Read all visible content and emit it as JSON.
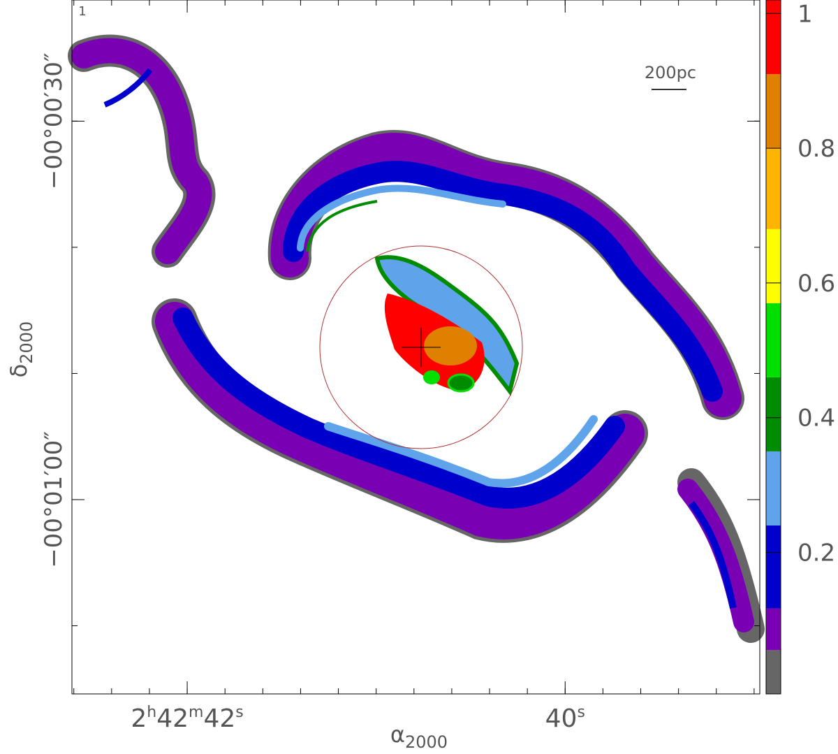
{
  "panel_label": "1",
  "scale_bar": "200pc",
  "chart_data": {
    "type": "map",
    "xlabel": "α",
    "xlabel_sub": "2000",
    "ylabel": "δ",
    "ylabel_sub": "2000",
    "xlim": [
      42.61,
      38.97
    ],
    "xticks": [
      {
        "value": 42,
        "label": "2h42m42s"
      },
      {
        "value": 40,
        "label": "40s"
      }
    ],
    "ylim": [
      -20.4,
      -75.4
    ],
    "yticks": [
      {
        "value": -30,
        "label": "−00°00′30″"
      },
      {
        "value": -60,
        "label": "−00°01′00″"
      }
    ],
    "colorbar": {
      "lim": [
        -0.01,
        1.02
      ],
      "ticks": [
        0.2,
        0.4,
        0.6,
        0.8,
        1
      ],
      "levels": [
        -0.01,
        0.055,
        0.117,
        0.24,
        0.35,
        0.46,
        0.57,
        0.68,
        0.8,
        0.91,
        1.02
      ],
      "colors": [
        "#666666",
        "#7a00b4",
        "#0000cc",
        "#5fa4ea",
        "#008c00",
        "#00e000",
        "#ffff00",
        "#ffb400",
        "#e08000",
        "#ff0000"
      ]
    }
  }
}
